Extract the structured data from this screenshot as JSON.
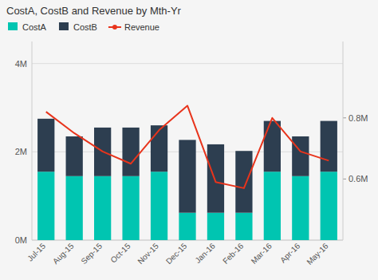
{
  "chart_data": {
    "type": "bar",
    "title": "CostA, CostB and Revenue by Mth-Yr",
    "categories": [
      "Jul-15",
      "Aug-15",
      "Sep-15",
      "Oct-15",
      "Nov-15",
      "Dec-15",
      "Jan-16",
      "Feb-16",
      "Mar-16",
      "Apr-16",
      "May-16"
    ],
    "stacked": true,
    "grid": true,
    "legend": "upper left",
    "series": [
      {
        "name": "CostA",
        "color": "#00c5b1",
        "values": [
          1.55,
          1.45,
          1.45,
          1.45,
          1.55,
          0.62,
          0.62,
          0.62,
          1.55,
          1.45,
          1.55
        ]
      },
      {
        "name": "CostB",
        "color": "#2d3e50",
        "values": [
          1.2,
          0.9,
          1.1,
          1.1,
          1.05,
          1.65,
          1.55,
          1.4,
          1.15,
          0.9,
          1.15
        ]
      },
      {
        "name": "Revenue",
        "type": "line",
        "axis": "y2",
        "color": "#e8341c",
        "values": [
          0.82,
          0.75,
          0.69,
          0.65,
          0.76,
          0.84,
          0.59,
          0.57,
          0.8,
          0.69,
          0.66
        ]
      }
    ],
    "ylim": [
      0,
      4.5
    ],
    "yticks": [
      {
        "value": 0,
        "label": "0M"
      },
      {
        "value": 2,
        "label": "2M"
      },
      {
        "value": 4,
        "label": "4M"
      }
    ],
    "y2lim": [
      0.4,
      1.05
    ],
    "y2ticks": [
      {
        "value": 0.6,
        "label": "0.6M"
      },
      {
        "value": 0.8,
        "label": "0.8M"
      }
    ]
  }
}
